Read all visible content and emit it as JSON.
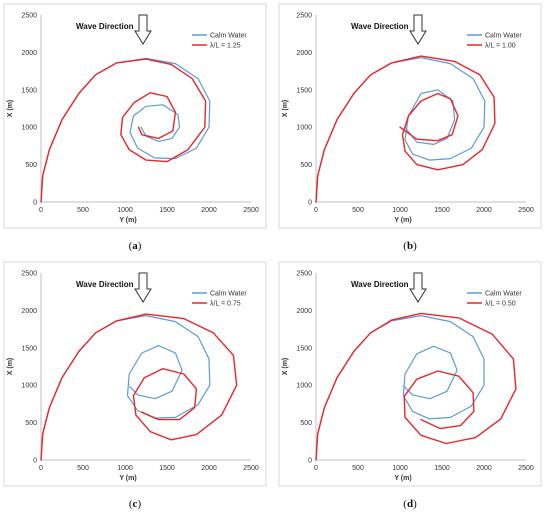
{
  "chart_data": [
    {
      "type": "line",
      "caption_letter": "a",
      "wave_direction_label": "Wave Direction",
      "xlabel": "Y (m)",
      "ylabel": "X (m)",
      "xlim": [
        0,
        2500
      ],
      "ylim": [
        0,
        2500
      ],
      "xticks": [
        "0",
        "500",
        "1000",
        "1500",
        "2000",
        "2500"
      ],
      "yticks": [
        "0",
        "500",
        "1000",
        "1500",
        "2000",
        "2500"
      ],
      "legend_position": "top-right",
      "series": [
        {
          "name": "Calm Water",
          "color": "#5b9bd5",
          "points": [
            [
              0,
              0
            ],
            [
              20,
              350
            ],
            [
              100,
              700
            ],
            [
              250,
              1100
            ],
            [
              450,
              1450
            ],
            [
              650,
              1700
            ],
            [
              900,
              1860
            ],
            [
              1250,
              1920
            ],
            [
              1600,
              1850
            ],
            [
              1870,
              1650
            ],
            [
              2010,
              1350
            ],
            [
              2000,
              1000
            ],
            [
              1850,
              720
            ],
            [
              1600,
              580
            ],
            [
              1350,
              590
            ],
            [
              1150,
              720
            ],
            [
              1060,
              930
            ],
            [
              1100,
              1150
            ],
            [
              1250,
              1280
            ],
            [
              1450,
              1300
            ],
            [
              1630,
              1170
            ],
            [
              1650,
              1000
            ],
            [
              1560,
              850
            ],
            [
              1400,
              810
            ],
            [
              1250,
              880
            ],
            [
              1190,
              1000
            ]
          ]
        },
        {
          "name": "λ/L = 1.25",
          "color": "#e8262a",
          "points": [
            [
              0,
              0
            ],
            [
              20,
              350
            ],
            [
              100,
              700
            ],
            [
              250,
              1100
            ],
            [
              450,
              1450
            ],
            [
              650,
              1700
            ],
            [
              900,
              1860
            ],
            [
              1250,
              1910
            ],
            [
              1550,
              1840
            ],
            [
              1800,
              1650
            ],
            [
              1960,
              1350
            ],
            [
              1950,
              1000
            ],
            [
              1750,
              700
            ],
            [
              1500,
              540
            ],
            [
              1250,
              560
            ],
            [
              1050,
              700
            ],
            [
              950,
              900
            ],
            [
              970,
              1130
            ],
            [
              1110,
              1330
            ],
            [
              1300,
              1460
            ],
            [
              1500,
              1410
            ],
            [
              1600,
              1200
            ],
            [
              1570,
              950
            ],
            [
              1400,
              850
            ],
            [
              1200,
              900
            ],
            [
              1160,
              1000
            ]
          ]
        }
      ]
    },
    {
      "type": "line",
      "caption_letter": "b",
      "wave_direction_label": "Wave Direction",
      "xlabel": "Y (m)",
      "ylabel": "X (m)",
      "xlim": [
        0,
        2500
      ],
      "ylim": [
        0,
        2500
      ],
      "xticks": [
        "0",
        "500",
        "1000",
        "1500",
        "2000",
        "2500"
      ],
      "yticks": [
        "0",
        "500",
        "1000",
        "1500",
        "2000",
        "2500"
      ],
      "legend_position": "top-right",
      "series": [
        {
          "name": "Calm Water",
          "color": "#5b9bd5",
          "points": [
            [
              0,
              0
            ],
            [
              20,
              350
            ],
            [
              100,
              700
            ],
            [
              250,
              1100
            ],
            [
              450,
              1450
            ],
            [
              650,
              1700
            ],
            [
              900,
              1860
            ],
            [
              1250,
              1930
            ],
            [
              1600,
              1850
            ],
            [
              1870,
              1650
            ],
            [
              2010,
              1350
            ],
            [
              2000,
              1000
            ],
            [
              1850,
              720
            ],
            [
              1600,
              580
            ],
            [
              1350,
              560
            ],
            [
              1150,
              640
            ],
            [
              1060,
              830
            ],
            [
              1100,
              1150
            ],
            [
              1250,
              1450
            ],
            [
              1450,
              1500
            ],
            [
              1630,
              1350
            ],
            [
              1650,
              1100
            ],
            [
              1560,
              850
            ],
            [
              1400,
              770
            ],
            [
              1200,
              800
            ],
            [
              1060,
              1000
            ]
          ]
        },
        {
          "name": "λ/L = 1.00",
          "color": "#e8262a",
          "points": [
            [
              0,
              0
            ],
            [
              20,
              350
            ],
            [
              100,
              700
            ],
            [
              250,
              1100
            ],
            [
              450,
              1450
            ],
            [
              650,
              1700
            ],
            [
              900,
              1860
            ],
            [
              1250,
              1950
            ],
            [
              1650,
              1880
            ],
            [
              1950,
              1700
            ],
            [
              2120,
              1400
            ],
            [
              2130,
              1050
            ],
            [
              1980,
              700
            ],
            [
              1750,
              500
            ],
            [
              1450,
              430
            ],
            [
              1200,
              500
            ],
            [
              1060,
              680
            ],
            [
              1030,
              900
            ],
            [
              1100,
              1150
            ],
            [
              1250,
              1350
            ],
            [
              1450,
              1450
            ],
            [
              1600,
              1380
            ],
            [
              1690,
              1150
            ],
            [
              1620,
              900
            ],
            [
              1450,
              820
            ],
            [
              1200,
              840
            ],
            [
              1000,
              1000
            ]
          ]
        }
      ]
    },
    {
      "type": "line",
      "caption_letter": "c",
      "wave_direction_label": "Wave Direction",
      "xlabel": "Y (m)",
      "ylabel": "X (m)",
      "xlim": [
        0,
        2500
      ],
      "ylim": [
        0,
        2500
      ],
      "xticks": [
        "0",
        "500",
        "1000",
        "1500",
        "2000",
        "2500"
      ],
      "yticks": [
        "0",
        "500",
        "1000",
        "1500",
        "2000",
        "2500"
      ],
      "legend_position": "top-right",
      "series": [
        {
          "name": "Calm Water",
          "color": "#5b9bd5",
          "points": [
            [
              0,
              0
            ],
            [
              20,
              350
            ],
            [
              100,
              700
            ],
            [
              250,
              1100
            ],
            [
              450,
              1450
            ],
            [
              650,
              1700
            ],
            [
              900,
              1860
            ],
            [
              1250,
              1930
            ],
            [
              1600,
              1850
            ],
            [
              1870,
              1650
            ],
            [
              2000,
              1350
            ],
            [
              2010,
              1000
            ],
            [
              1870,
              740
            ],
            [
              1600,
              570
            ],
            [
              1350,
              560
            ],
            [
              1150,
              660
            ],
            [
              1030,
              860
            ],
            [
              1050,
              1150
            ],
            [
              1200,
              1430
            ],
            [
              1400,
              1530
            ],
            [
              1600,
              1430
            ],
            [
              1680,
              1200
            ],
            [
              1560,
              920
            ],
            [
              1360,
              820
            ],
            [
              1150,
              870
            ],
            [
              1060,
              980
            ]
          ]
        },
        {
          "name": "λ/L = 0.75",
          "color": "#e8262a",
          "points": [
            [
              0,
              0
            ],
            [
              20,
              350
            ],
            [
              100,
              700
            ],
            [
              250,
              1100
            ],
            [
              450,
              1450
            ],
            [
              650,
              1700
            ],
            [
              900,
              1860
            ],
            [
              1250,
              1950
            ],
            [
              1700,
              1890
            ],
            [
              2050,
              1700
            ],
            [
              2290,
              1400
            ],
            [
              2330,
              1000
            ],
            [
              2150,
              600
            ],
            [
              1850,
              340
            ],
            [
              1550,
              270
            ],
            [
              1300,
              380
            ],
            [
              1130,
              600
            ],
            [
              1100,
              860
            ],
            [
              1230,
              1100
            ],
            [
              1450,
              1220
            ],
            [
              1700,
              1150
            ],
            [
              1850,
              950
            ],
            [
              1830,
              700
            ],
            [
              1650,
              540
            ],
            [
              1400,
              540
            ],
            [
              1200,
              640
            ]
          ]
        }
      ]
    },
    {
      "type": "line",
      "caption_letter": "d",
      "wave_direction_label": "Wave Direction",
      "xlabel": "Y (m)",
      "ylabel": "X (m)",
      "xlim": [
        0,
        2500
      ],
      "ylim": [
        0,
        2500
      ],
      "xticks": [
        "0",
        "500",
        "1000",
        "1500",
        "2000",
        "2500"
      ],
      "yticks": [
        "0",
        "500",
        "1000",
        "1500",
        "2000",
        "2500"
      ],
      "legend_position": "top-right",
      "series": [
        {
          "name": "Calm Water",
          "color": "#5b9bd5",
          "points": [
            [
              0,
              0
            ],
            [
              20,
              350
            ],
            [
              100,
              700
            ],
            [
              250,
              1100
            ],
            [
              450,
              1450
            ],
            [
              650,
              1700
            ],
            [
              900,
              1860
            ],
            [
              1250,
              1930
            ],
            [
              1600,
              1850
            ],
            [
              1870,
              1650
            ],
            [
              2000,
              1350
            ],
            [
              2000,
              1000
            ],
            [
              1850,
              720
            ],
            [
              1600,
              570
            ],
            [
              1350,
              550
            ],
            [
              1150,
              650
            ],
            [
              1040,
              860
            ],
            [
              1060,
              1150
            ],
            [
              1200,
              1420
            ],
            [
              1400,
              1520
            ],
            [
              1600,
              1430
            ],
            [
              1680,
              1200
            ],
            [
              1560,
              920
            ],
            [
              1360,
              820
            ],
            [
              1150,
              870
            ],
            [
              1040,
              990
            ]
          ]
        },
        {
          "name": "λ/L = 0.50",
          "color": "#e8262a",
          "points": [
            [
              0,
              0
            ],
            [
              20,
              350
            ],
            [
              100,
              700
            ],
            [
              250,
              1100
            ],
            [
              450,
              1450
            ],
            [
              650,
              1700
            ],
            [
              900,
              1870
            ],
            [
              1250,
              1960
            ],
            [
              1700,
              1900
            ],
            [
              2100,
              1680
            ],
            [
              2350,
              1350
            ],
            [
              2380,
              950
            ],
            [
              2200,
              550
            ],
            [
              1900,
              300
            ],
            [
              1550,
              220
            ],
            [
              1250,
              330
            ],
            [
              1060,
              570
            ],
            [
              1050,
              850
            ],
            [
              1200,
              1080
            ],
            [
              1450,
              1190
            ],
            [
              1700,
              1120
            ],
            [
              1870,
              900
            ],
            [
              1880,
              650
            ],
            [
              1720,
              460
            ],
            [
              1480,
              420
            ],
            [
              1250,
              540
            ]
          ]
        }
      ]
    }
  ]
}
